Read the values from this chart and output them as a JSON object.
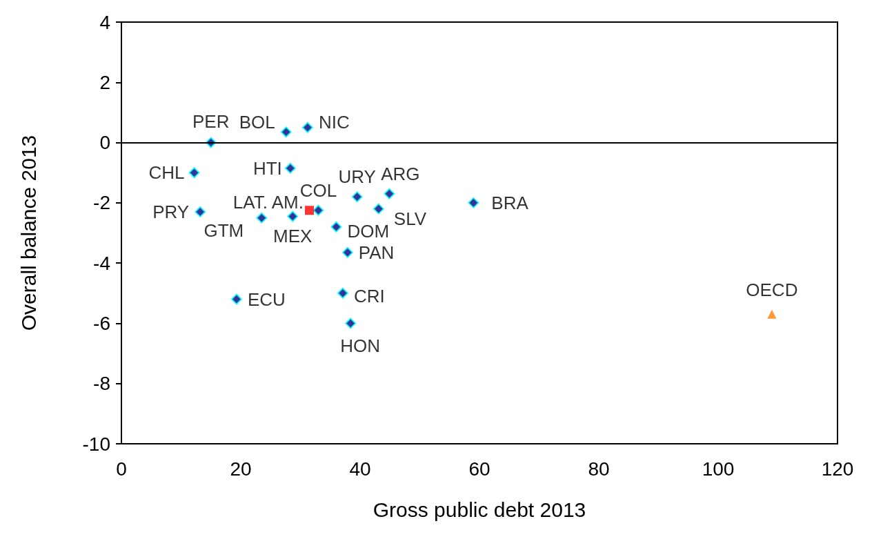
{
  "chart_data": {
    "type": "scatter",
    "xlabel": "Gross public debt 2013",
    "ylabel": "Overall balance 2013",
    "xlim": [
      0,
      120
    ],
    "xticks": [
      0,
      20,
      40,
      60,
      80,
      100,
      120
    ],
    "ylim": [
      -10,
      4
    ],
    "yticks": [
      -10,
      -8,
      -6,
      -4,
      -2,
      0,
      2,
      4
    ],
    "grid": false,
    "ref_lines": [
      {
        "axis": "y",
        "value": 0,
        "color": "#000000",
        "line_style": "solid"
      }
    ],
    "series": [
      {
        "color": "#000080",
        "marker": "diamond",
        "x": [
          15.0,
          27.6,
          31.2,
          12.2,
          28.3,
          39.5,
          44.9,
          59.0,
          43.1,
          33.0,
          13.2,
          23.5,
          28.7,
          36.0,
          37.9,
          37.1,
          38.4,
          19.3
        ],
        "values": [
          0.0,
          0.35,
          0.5,
          -1.0,
          -0.85,
          -1.8,
          -1.7,
          -2.0,
          -2.2,
          -2.25,
          -2.3,
          -2.5,
          -2.45,
          -2.8,
          -3.65,
          -5.0,
          -6.0,
          -5.2
        ],
        "value_labels": [
          "PER",
          "BOL",
          "NIC",
          "CHL",
          "HTI",
          "URY",
          "ARG",
          "BRA",
          "SLV",
          "COL",
          "PRY",
          "GTM",
          "MEX",
          "DOM",
          "PAN",
          "CRI",
          "HON",
          "ECU"
        ]
      },
      {
        "color": "#ff0000",
        "marker": "square",
        "x": [
          31.5
        ],
        "values": [
          -2.25
        ],
        "value_labels": [
          "LAT. AM."
        ]
      },
      {
        "color": "#ff8000",
        "marker": "triangle",
        "x": [
          109.0
        ],
        "values": [
          -5.7
        ],
        "value_labels": [
          "OECD"
        ]
      }
    ]
  }
}
